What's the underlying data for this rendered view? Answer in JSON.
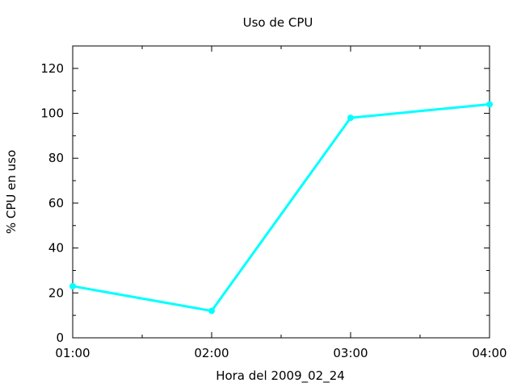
{
  "chart_data": {
    "type": "line",
    "title": "Uso de CPU",
    "xlabel": "Hora del 2009_02_24",
    "ylabel": "% CPU en uso",
    "x": [
      "01:00",
      "02:00",
      "03:00",
      "04:00"
    ],
    "series": [
      {
        "values": [
          23,
          12,
          98,
          104
        ],
        "color": "#00ffff"
      }
    ],
    "xticks": [
      "01:00",
      "02:00",
      "03:00",
      "04:00"
    ],
    "yticks": [
      0,
      20,
      40,
      60,
      80,
      100,
      120
    ],
    "ylim": [
      0,
      130
    ],
    "grid": false,
    "legend": "none"
  }
}
